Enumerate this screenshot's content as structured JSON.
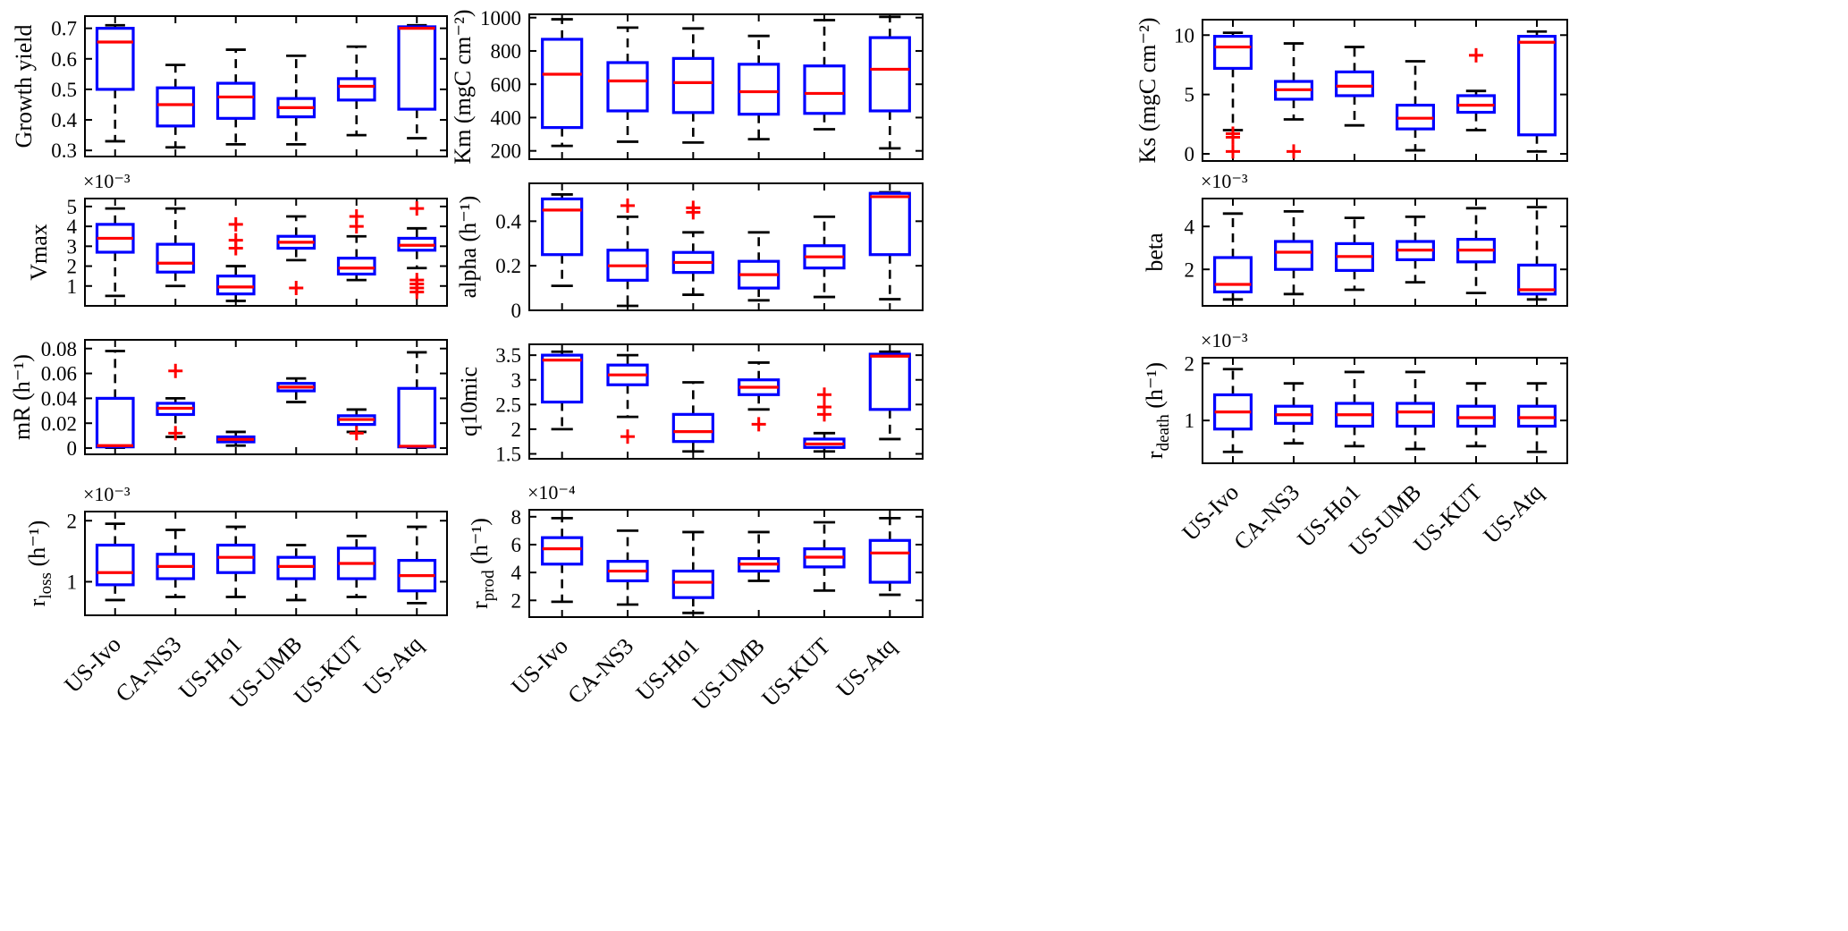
{
  "figure": {
    "description": "Grid of box plots of model parameters across six sites",
    "sites_label": "US-Ivo, CA-NS3, US-Ho1, US-UMB, US-KUT, US-Atq"
  },
  "chart_data": {
    "type": "boxplot-grid",
    "box_format": [
      "whisker_low",
      "q1",
      "median",
      "q3",
      "whisker_high",
      "outliers"
    ],
    "categories": [
      "US-Ivo",
      "CA-NS3",
      "US-Ho1",
      "US-UMB",
      "US-KUT",
      "US-Atq"
    ],
    "colors": {
      "box": "#0000ff",
      "median": "#ff0000",
      "whisker": "#000000",
      "outlier": "#ff0000",
      "axis": "#000000"
    },
    "plots": [
      {
        "id": "growth-yield",
        "ylabel": [
          [
            "Growth yield"
          ]
        ],
        "exponent": null,
        "ylim": [
          0.28,
          0.74
        ],
        "yticks": [
          0.3,
          0.4,
          0.5,
          0.6,
          0.7
        ],
        "ytick_labels": [
          "0.3",
          "0.4",
          "0.5",
          "0.6",
          "0.7"
        ],
        "boxes": [
          [
            0.33,
            0.5,
            0.655,
            0.7,
            0.71,
            []
          ],
          [
            0.31,
            0.38,
            0.45,
            0.505,
            0.58,
            []
          ],
          [
            0.32,
            0.405,
            0.475,
            0.52,
            0.63,
            []
          ],
          [
            0.32,
            0.41,
            0.44,
            0.47,
            0.61,
            []
          ],
          [
            0.35,
            0.465,
            0.51,
            0.535,
            0.64,
            []
          ],
          [
            0.34,
            0.435,
            0.7,
            0.705,
            0.71,
            []
          ]
        ]
      },
      {
        "id": "km",
        "ylabel": [
          [
            "Km (mgC cm⁻²)"
          ]
        ],
        "exponent": null,
        "ylim": [
          150,
          1020
        ],
        "yticks": [
          200,
          400,
          600,
          800,
          1000
        ],
        "ytick_labels": [
          "200",
          "400",
          "600",
          "800",
          "1000"
        ],
        "boxes": [
          [
            230,
            340,
            660,
            870,
            990,
            []
          ],
          [
            255,
            440,
            620,
            730,
            940,
            []
          ],
          [
            250,
            430,
            610,
            755,
            935,
            []
          ],
          [
            270,
            420,
            555,
            720,
            890,
            []
          ],
          [
            330,
            425,
            545,
            710,
            985,
            []
          ],
          [
            215,
            440,
            690,
            880,
            1005,
            []
          ]
        ]
      },
      {
        "id": "ks",
        "ylabel": [
          [
            "Ks (mgC cm⁻²)"
          ]
        ],
        "exponent": null,
        "ylim": [
          -0.6,
          11.3
        ],
        "yticks": [
          0,
          5,
          10
        ],
        "ytick_labels": [
          "0",
          "5",
          "10"
        ],
        "boxes": [
          [
            2.0,
            7.2,
            9.0,
            9.9,
            10.2,
            [
              1.7,
              1.4,
              0.2
            ]
          ],
          [
            2.9,
            4.6,
            5.4,
            6.1,
            9.3,
            [
              0.2
            ]
          ],
          [
            2.4,
            4.9,
            5.7,
            6.9,
            9.0,
            []
          ],
          [
            0.3,
            2.1,
            3.0,
            4.1,
            7.8,
            []
          ],
          [
            2.0,
            3.5,
            4.1,
            4.9,
            5.3,
            [
              8.3
            ]
          ],
          [
            0.2,
            1.6,
            9.4,
            9.9,
            10.3,
            []
          ]
        ]
      },
      {
        "id": "vmax",
        "ylabel": [
          [
            "Vmax"
          ]
        ],
        "exponent": "×10⁻³",
        "ylim": [
          0,
          5.4
        ],
        "yticks": [
          1,
          2,
          3,
          4,
          5
        ],
        "ytick_labels": [
          "1",
          "2",
          "3",
          "4",
          "5"
        ],
        "boxes": [
          [
            0.5,
            2.7,
            3.4,
            4.1,
            4.9,
            []
          ],
          [
            1.0,
            1.7,
            2.15,
            3.1,
            4.9,
            []
          ],
          [
            0.25,
            0.6,
            0.95,
            1.5,
            2.0,
            [
              2.9,
              3.3,
              4.1
            ]
          ],
          [
            2.3,
            2.9,
            3.2,
            3.5,
            4.5,
            [
              0.9
            ]
          ],
          [
            1.3,
            1.6,
            1.9,
            2.4,
            3.5,
            [
              4.0,
              4.5
            ]
          ],
          [
            1.9,
            2.8,
            3.05,
            3.4,
            3.9,
            [
              4.9,
              1.3,
              1.1,
              0.9,
              0.7
            ]
          ]
        ]
      },
      {
        "id": "alpha",
        "ylabel": [
          [
            "alpha (h⁻¹)"
          ]
        ],
        "exponent": null,
        "ylim": [
          0,
          0.57
        ],
        "yticks": [
          0,
          0.2,
          0.4
        ],
        "ytick_labels": [
          "0",
          "0.2",
          "0.4"
        ],
        "boxes": [
          [
            0.11,
            0.25,
            0.45,
            0.5,
            0.52,
            []
          ],
          [
            0.02,
            0.135,
            0.2,
            0.27,
            0.42,
            [
              0.47
            ]
          ],
          [
            0.07,
            0.17,
            0.215,
            0.26,
            0.35,
            [
              0.46,
              0.44
            ]
          ],
          [
            0.045,
            0.1,
            0.16,
            0.22,
            0.35,
            []
          ],
          [
            0.06,
            0.19,
            0.24,
            0.29,
            0.42,
            []
          ],
          [
            0.05,
            0.25,
            0.51,
            0.525,
            0.53,
            []
          ]
        ]
      },
      {
        "id": "beta",
        "ylabel": [
          [
            "beta"
          ]
        ],
        "exponent": "×10⁻³",
        "ylim": [
          0.3,
          5.3
        ],
        "yticks": [
          2,
          4
        ],
        "ytick_labels": [
          "2",
          "4"
        ],
        "boxes": [
          [
            0.6,
            0.95,
            1.3,
            2.55,
            4.6,
            []
          ],
          [
            0.85,
            2.0,
            2.8,
            3.3,
            4.7,
            []
          ],
          [
            1.05,
            1.95,
            2.6,
            3.2,
            4.4,
            []
          ],
          [
            1.4,
            2.45,
            2.9,
            3.3,
            4.45,
            []
          ],
          [
            0.9,
            2.35,
            2.9,
            3.4,
            4.85,
            []
          ],
          [
            0.6,
            0.85,
            1.05,
            2.2,
            4.9,
            []
          ]
        ]
      },
      {
        "id": "mr",
        "ylabel": [
          [
            "mR (h⁻¹)"
          ]
        ],
        "exponent": null,
        "ylim": [
          -0.005,
          0.087
        ],
        "yticks": [
          0,
          0.02,
          0.04,
          0.06,
          0.08
        ],
        "ytick_labels": [
          "0",
          "0.02",
          "0.04",
          "0.06",
          "0.08"
        ],
        "boxes": [
          [
            0.0003,
            0.001,
            0.002,
            0.04,
            0.078,
            []
          ],
          [
            0.009,
            0.027,
            0.032,
            0.036,
            0.04,
            [
              0.062,
              0.012
            ]
          ],
          [
            0.002,
            0.005,
            0.007,
            0.009,
            0.013,
            []
          ],
          [
            0.037,
            0.046,
            0.049,
            0.052,
            0.056,
            []
          ],
          [
            0.013,
            0.019,
            0.023,
            0.026,
            0.031,
            [
              0.012
            ]
          ],
          [
            0.0003,
            0.001,
            0.0015,
            0.048,
            0.077,
            []
          ]
        ]
      },
      {
        "id": "q10mic",
        "ylabel": [
          [
            "q10mic"
          ]
        ],
        "exponent": null,
        "ylim": [
          1.4,
          3.72
        ],
        "yticks": [
          1.5,
          2,
          2.5,
          3,
          3.5
        ],
        "ytick_labels": [
          "1.5",
          "2",
          "2.5",
          "3",
          "3.5"
        ],
        "boxes": [
          [
            2.0,
            2.55,
            3.4,
            3.5,
            3.57,
            []
          ],
          [
            2.25,
            2.9,
            3.1,
            3.3,
            3.5,
            [
              1.85
            ]
          ],
          [
            1.55,
            1.75,
            1.95,
            2.3,
            2.95,
            []
          ],
          [
            2.4,
            2.7,
            2.85,
            3.0,
            3.35,
            [
              2.1
            ]
          ],
          [
            1.55,
            1.63,
            1.7,
            1.8,
            1.92,
            [
              2.3,
              2.45,
              2.7
            ]
          ],
          [
            1.8,
            2.4,
            3.48,
            3.52,
            3.57,
            []
          ]
        ]
      },
      {
        "id": "r-death",
        "ylabel": [
          [
            "r"
          ],
          [
            "death",
            "sub"
          ],
          [
            " (h⁻¹)"
          ]
        ],
        "exponent": "×10⁻³",
        "ylim": [
          0.25,
          2.1
        ],
        "yticks": [
          1,
          2
        ],
        "ytick_labels": [
          "1",
          "2"
        ],
        "boxes": [
          [
            0.45,
            0.85,
            1.15,
            1.45,
            1.9,
            []
          ],
          [
            0.6,
            0.95,
            1.1,
            1.25,
            1.65,
            []
          ],
          [
            0.55,
            0.9,
            1.1,
            1.3,
            1.85,
            []
          ],
          [
            0.5,
            0.9,
            1.15,
            1.3,
            1.85,
            []
          ],
          [
            0.55,
            0.9,
            1.05,
            1.25,
            1.65,
            []
          ],
          [
            0.45,
            0.9,
            1.05,
            1.25,
            1.65,
            []
          ]
        ]
      },
      {
        "id": "r-loss",
        "ylabel": [
          [
            "r"
          ],
          [
            "loss",
            "sub"
          ],
          [
            " (h⁻¹)"
          ]
        ],
        "exponent": "×10⁻³",
        "ylim": [
          0.45,
          2.15
        ],
        "yticks": [
          1,
          2
        ],
        "ytick_labels": [
          "1",
          "2"
        ],
        "boxes": [
          [
            0.7,
            0.95,
            1.15,
            1.6,
            1.95,
            []
          ],
          [
            0.75,
            1.05,
            1.25,
            1.45,
            1.85,
            []
          ],
          [
            0.75,
            1.15,
            1.4,
            1.6,
            1.9,
            []
          ],
          [
            0.7,
            1.05,
            1.25,
            1.4,
            1.6,
            []
          ],
          [
            0.75,
            1.05,
            1.3,
            1.55,
            1.75,
            []
          ],
          [
            0.65,
            0.85,
            1.1,
            1.35,
            1.9,
            []
          ]
        ]
      },
      {
        "id": "r-prod",
        "ylabel": [
          [
            "r"
          ],
          [
            "prod",
            "sub"
          ],
          [
            " (h⁻¹)"
          ]
        ],
        "exponent": "×10⁻⁴",
        "ylim": [
          0.8,
          8.5
        ],
        "yticks": [
          2,
          4,
          6,
          8
        ],
        "ytick_labels": [
          "2",
          "4",
          "6",
          "8"
        ],
        "boxes": [
          [
            1.9,
            4.6,
            5.7,
            6.5,
            7.9,
            []
          ],
          [
            1.7,
            3.4,
            4.1,
            4.8,
            7.0,
            []
          ],
          [
            1.1,
            2.2,
            3.3,
            4.1,
            6.9,
            []
          ],
          [
            3.4,
            4.1,
            4.6,
            5.0,
            6.9,
            []
          ],
          [
            2.7,
            4.4,
            5.1,
            5.7,
            7.6,
            []
          ],
          [
            2.4,
            3.3,
            5.4,
            6.3,
            7.9,
            []
          ]
        ]
      }
    ]
  }
}
